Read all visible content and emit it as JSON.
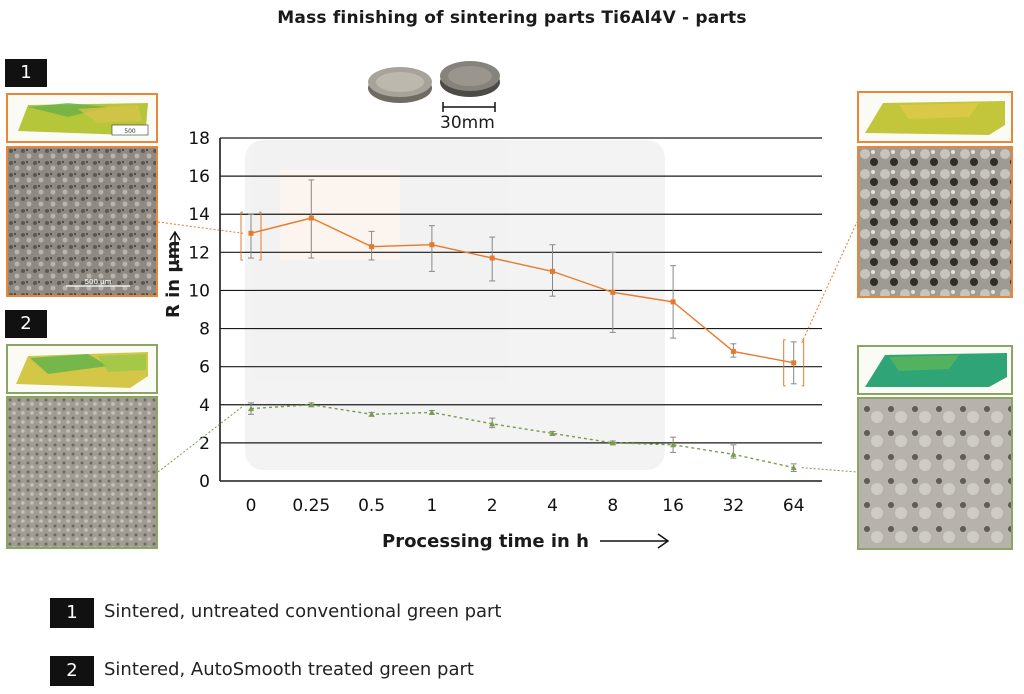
{
  "title": "Mass finishing of sintering parts Ti6Al4V - parts",
  "scale_bar_label": "30mm",
  "badges": {
    "one": "1",
    "two": "2"
  },
  "thumbnails": {
    "part1_topo_scale": "500",
    "part1_micro_scale": "500 µm"
  },
  "legend": [
    {
      "number": "1",
      "text": "Sintered, untreated conventional green part",
      "color": "#e8792a"
    },
    {
      "number": "2",
      "text": "Sintered, AutoSmooth treated green part",
      "color": "#7a9b4a"
    }
  ],
  "colors": {
    "orange": "#e8792a",
    "green": "#7a9b4a",
    "grid": "#1a1a1a",
    "errorbar": "#888888"
  },
  "icons": [
    "coin-pair-photo",
    "right-arrow-icon",
    "up-arrow-icon"
  ],
  "chart_data": {
    "type": "line",
    "xlabel": "Processing time in h",
    "ylabel": "R in µm",
    "categories": [
      "0",
      "0.25",
      "0.5",
      "1",
      "2",
      "4",
      "8",
      "16",
      "32",
      "64"
    ],
    "ylim": [
      0,
      18
    ],
    "yticks": [
      0,
      2,
      4,
      6,
      8,
      10,
      12,
      14,
      16,
      18
    ],
    "grid": "horizontal",
    "series": [
      {
        "legend_ref": "1",
        "values": [
          13.0,
          13.8,
          12.3,
          12.4,
          11.7,
          11.0,
          9.9,
          9.4,
          6.8,
          6.2
        ],
        "error_low": [
          11.7,
          11.7,
          11.6,
          11.0,
          10.5,
          9.7,
          7.8,
          7.5,
          6.5,
          5.1
        ],
        "error_high": [
          14.0,
          15.8,
          13.1,
          13.4,
          12.8,
          12.4,
          12.0,
          11.3,
          7.2,
          7.3
        ]
      },
      {
        "legend_ref": "2",
        "values": [
          3.8,
          4.0,
          3.5,
          3.6,
          3.0,
          2.5,
          2.0,
          1.9,
          1.4,
          0.7
        ],
        "error_low": [
          3.5,
          3.9,
          3.4,
          3.5,
          2.8,
          2.4,
          1.9,
          1.5,
          1.2,
          0.5
        ],
        "error_high": [
          4.1,
          4.1,
          3.6,
          3.7,
          3.3,
          2.6,
          2.1,
          2.3,
          1.9,
          0.9
        ]
      }
    ]
  }
}
